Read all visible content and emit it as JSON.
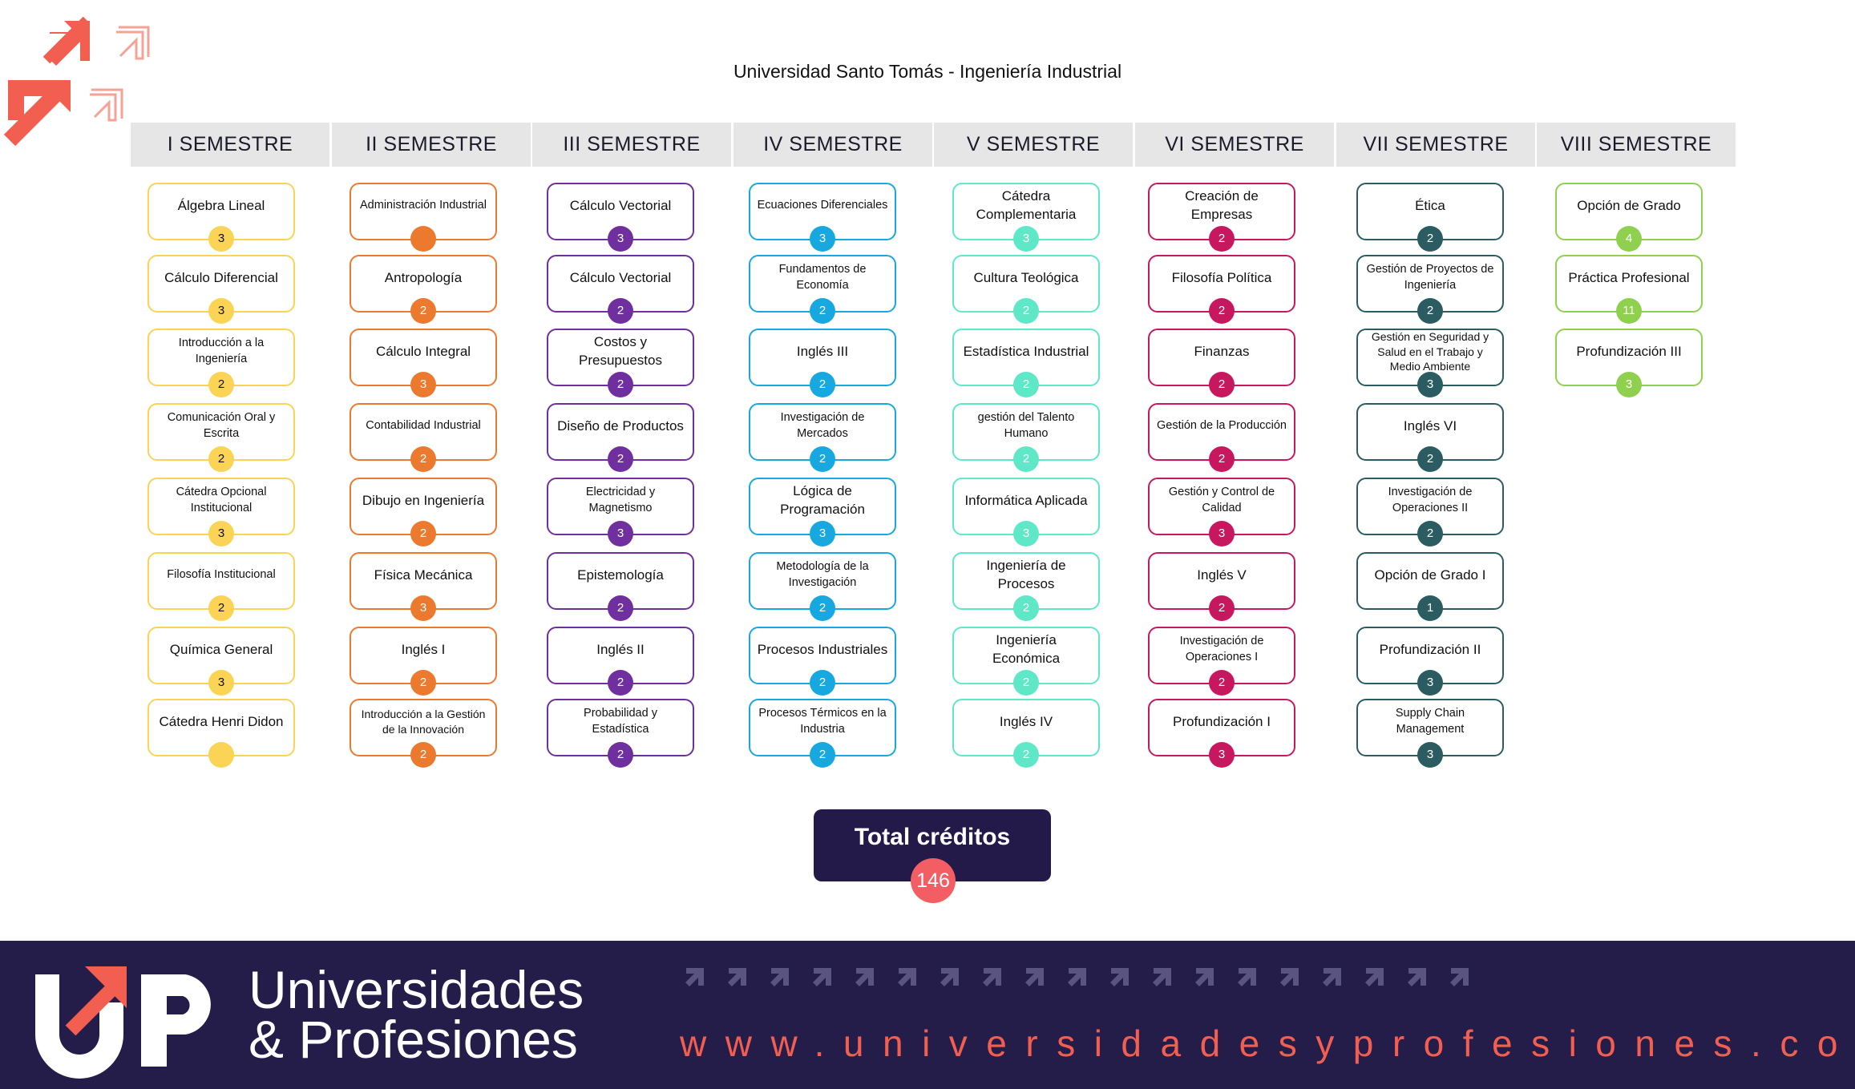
{
  "title": "Universidad Santo Tomás - Ingeniería Industrial",
  "semesters": [
    {
      "name": "I SEMESTRE",
      "color": "#fbd355",
      "courses": [
        {
          "name": "Álgebra Lineal",
          "credits": "3"
        },
        {
          "name": "Cálculo Diferencial",
          "credits": "3"
        },
        {
          "name": "Introducción a la Ingeniería",
          "credits": "2"
        },
        {
          "name": "Comunicación Oral y Escrita",
          "credits": "2"
        },
        {
          "name": "Cátedra Opcional Institucional",
          "credits": "3"
        },
        {
          "name": "Filosofía Institucional",
          "credits": "2"
        },
        {
          "name": "Química General",
          "credits": "3"
        },
        {
          "name": "Cátedra Henri Didon",
          "credits": ""
        }
      ]
    },
    {
      "name": "II SEMESTRE",
      "color": "#ec7a2e",
      "courses": [
        {
          "name": "Administración Industrial",
          "credits": ""
        },
        {
          "name": "Antropología",
          "credits": "2"
        },
        {
          "name": "Cálculo Integral",
          "credits": "3"
        },
        {
          "name": "Contabilidad Industrial",
          "credits": "2"
        },
        {
          "name": "Dibujo en Ingeniería",
          "credits": "2"
        },
        {
          "name": "Física Mecánica",
          "credits": "3"
        },
        {
          "name": "Inglés I",
          "credits": "2"
        },
        {
          "name": "Introducción a la Gestión de la Innovación",
          "credits": "2"
        }
      ]
    },
    {
      "name": "III SEMESTRE",
      "color": "#6f2f9e",
      "courses": [
        {
          "name": "Cálculo Vectorial",
          "credits": "3"
        },
        {
          "name": "Cálculo Vectorial",
          "credits": "2"
        },
        {
          "name": "Costos y Presupuestos",
          "credits": "2"
        },
        {
          "name": "Diseño de Productos",
          "credits": "2"
        },
        {
          "name": "Electricidad y Magnetismo",
          "credits": "3"
        },
        {
          "name": "Epistemología",
          "credits": "2"
        },
        {
          "name": "Inglés II",
          "credits": "2"
        },
        {
          "name": "Probabilidad y Estadística",
          "credits": "2"
        }
      ]
    },
    {
      "name": "IV SEMESTRE",
      "color": "#17a8e0",
      "courses": [
        {
          "name": "Ecuaciones Diferenciales",
          "credits": "3"
        },
        {
          "name": "Fundamentos de Economía",
          "credits": "2"
        },
        {
          "name": "Inglés III",
          "credits": "2"
        },
        {
          "name": "Investigación de Mercados",
          "credits": "2"
        },
        {
          "name": "Lógica de Programación",
          "credits": "3"
        },
        {
          "name": "Metodología de la Investigación",
          "credits": "2"
        },
        {
          "name": "Procesos Industriales",
          "credits": "2"
        },
        {
          "name": "Procesos Térmicos en la Industria",
          "credits": "2"
        }
      ]
    },
    {
      "name": "V SEMESTRE",
      "color": "#5ee8c8",
      "courses": [
        {
          "name": "Cátedra Complementaria",
          "credits": "3"
        },
        {
          "name": "Cultura Teológica",
          "credits": "2"
        },
        {
          "name": "Estadística Industrial",
          "credits": "2"
        },
        {
          "name": "gestión del Talento Humano",
          "credits": "2"
        },
        {
          "name": "Informática Aplicada",
          "credits": "3"
        },
        {
          "name": "Ingeniería de Procesos",
          "credits": "2"
        },
        {
          "name": "Ingeniería Económica",
          "credits": "2"
        },
        {
          "name": "Inglés IV",
          "credits": "2"
        }
      ]
    },
    {
      "name": "VI SEMESTRE",
      "color": "#c7185f",
      "courses": [
        {
          "name": "Creación de Empresas",
          "credits": "2"
        },
        {
          "name": "Filosofía Política",
          "credits": "2"
        },
        {
          "name": "Finanzas",
          "credits": "2"
        },
        {
          "name": "Gestión de la Producción",
          "credits": "2"
        },
        {
          "name": "Gestión y Control de Calidad",
          "credits": "3"
        },
        {
          "name": "Inglés V",
          "credits": "2"
        },
        {
          "name": "Investigación de Operaciones I",
          "credits": "2"
        },
        {
          "name": "Profundización I",
          "credits": "3"
        }
      ]
    },
    {
      "name": "VII SEMESTRE",
      "color": "#2b5c62",
      "courses": [
        {
          "name": "Ética",
          "credits": "2"
        },
        {
          "name": "Gestión de Proyectos de Ingeniería",
          "credits": "2"
        },
        {
          "name": "Gestión en Seguridad y Salud en el Trabajo y Medio Ambiente",
          "credits": "3"
        },
        {
          "name": "Inglés VI",
          "credits": "2"
        },
        {
          "name": "Investigación de Operaciones II",
          "credits": "2"
        },
        {
          "name": "Opción de Grado I",
          "credits": "1"
        },
        {
          "name": "Profundización II",
          "credits": "3"
        },
        {
          "name": "Supply Chain Management",
          "credits": "3"
        }
      ]
    },
    {
      "name": "VIII SEMESTRE",
      "color": "#8fd14f",
      "courses": [
        {
          "name": "Opción de Grado",
          "credits": "4"
        },
        {
          "name": "Práctica Profesional",
          "credits": "11"
        },
        {
          "name": "Profundización III",
          "credits": "3"
        }
      ]
    }
  ],
  "total": {
    "label": "Total créditos",
    "value": "146"
  },
  "footer": {
    "brand_line1": "Universidades",
    "brand_line2": "& Profesiones",
    "url": "www.universidadesyprofesiones.com",
    "logo_text": "UP"
  },
  "colors": {
    "accent": "#f25e4f",
    "navy": "#241d4a",
    "header_bg": "#e6e6e6"
  }
}
